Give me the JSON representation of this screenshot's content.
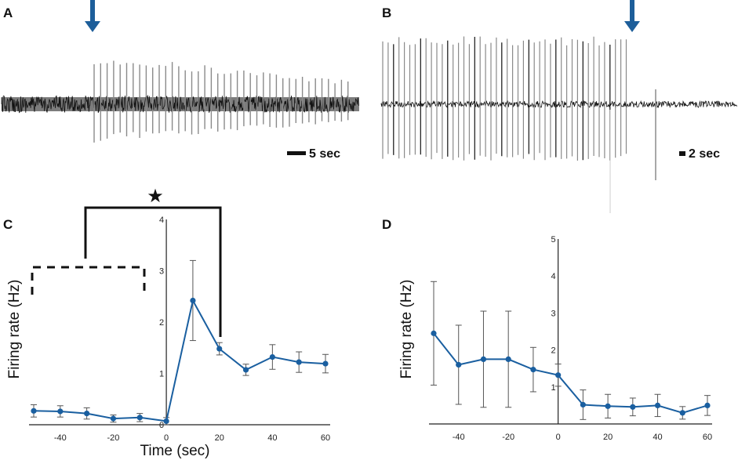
{
  "panels": {
    "a": {
      "letter": "A",
      "scale_bar": "5 sec"
    },
    "b": {
      "letter": "B",
      "scale_bar": "2 sec"
    },
    "c": {
      "letter": "C"
    },
    "d": {
      "letter": "D"
    }
  },
  "significance": {
    "symbol": "★",
    "compared": [
      "baseline (-50 to -10 sec)",
      "20 sec"
    ]
  },
  "colors": {
    "series": "#1a5fa0",
    "arrow": "#1d5e9a",
    "trace": "#111111",
    "spike": "#8a8a8a",
    "axis": "#222222"
  },
  "chart_data": [
    {
      "panel": "C",
      "type": "line",
      "xlabel": "Time  (sec)",
      "ylabel": "Firing rate (Hz)",
      "xlim": [
        -50,
        60
      ],
      "ylim": [
        0,
        4
      ],
      "xticks": [
        -40,
        -20,
        0,
        20,
        40,
        60
      ],
      "yticks": [
        0,
        1,
        2,
        3,
        4
      ],
      "x": [
        -50,
        -40,
        -30,
        -20,
        -10,
        0,
        10,
        20,
        30,
        40,
        50,
        60
      ],
      "values": [
        0.27,
        0.26,
        0.22,
        0.12,
        0.14,
        0.07,
        2.42,
        1.48,
        1.07,
        1.32,
        1.22,
        1.19
      ],
      "errors": [
        0.12,
        0.11,
        0.11,
        0.07,
        0.08,
        0.07,
        0.78,
        0.12,
        0.11,
        0.24,
        0.2,
        0.18
      ]
    },
    {
      "panel": "D",
      "type": "line",
      "xlabel": "",
      "ylabel": "Firing rate (Hz)",
      "xlim": [
        -50,
        60
      ],
      "ylim": [
        0,
        5
      ],
      "xticks": [
        -40,
        -20,
        0,
        20,
        40,
        60
      ],
      "yticks": [
        1,
        2,
        3,
        4,
        5
      ],
      "x": [
        -50,
        -40,
        -30,
        -20,
        -10,
        0,
        10,
        20,
        30,
        40,
        50,
        60
      ],
      "values": [
        2.45,
        1.6,
        1.75,
        1.75,
        1.47,
        1.32,
        0.52,
        0.48,
        0.46,
        0.5,
        0.3,
        0.5
      ],
      "errors": [
        1.4,
        1.07,
        1.3,
        1.3,
        0.6,
        0.3,
        0.4,
        0.32,
        0.24,
        0.3,
        0.17,
        0.27
      ]
    }
  ]
}
